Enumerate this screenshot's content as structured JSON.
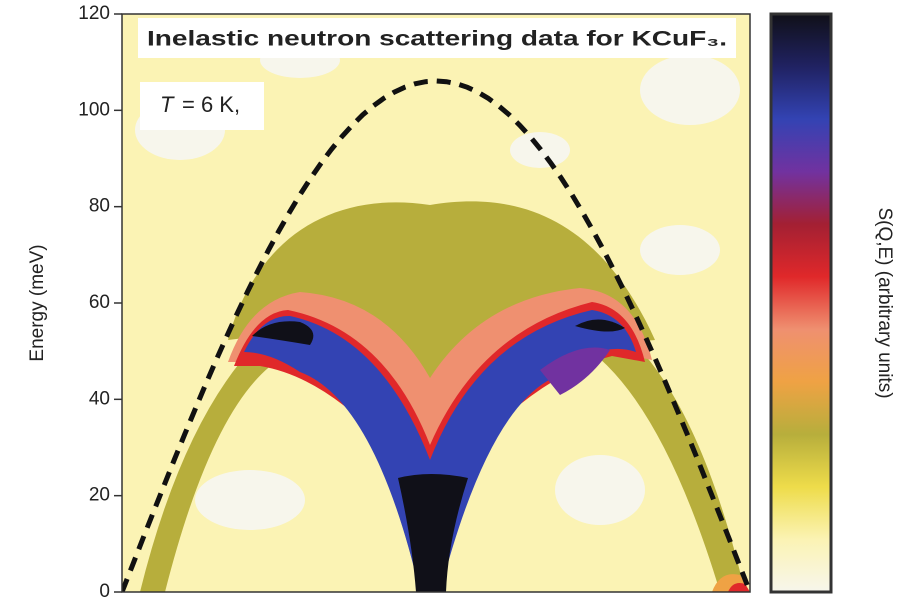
{
  "chart_data": {
    "type": "contour",
    "title": "Inelastic neutron scattering data for KCuF₃.",
    "annotation_symbol": "T",
    "annotation_text": "= 6 K,",
    "ylabel": "Energy (meV)",
    "ylim": [
      0,
      120
    ],
    "yticks": [
      0,
      20,
      40,
      60,
      80,
      100,
      120
    ],
    "colorbar": {
      "label": "S(Q,E) (arbitrary units)",
      "colors": [
        "#f7f6ec",
        "#fbf3b4",
        "#eedc4a",
        "#b7ae3c",
        "#efa244",
        "#ef9070",
        "#e0282a",
        "#a32033",
        "#7132a0",
        "#3343b3",
        "#202262",
        "#101018"
      ]
    }
  }
}
